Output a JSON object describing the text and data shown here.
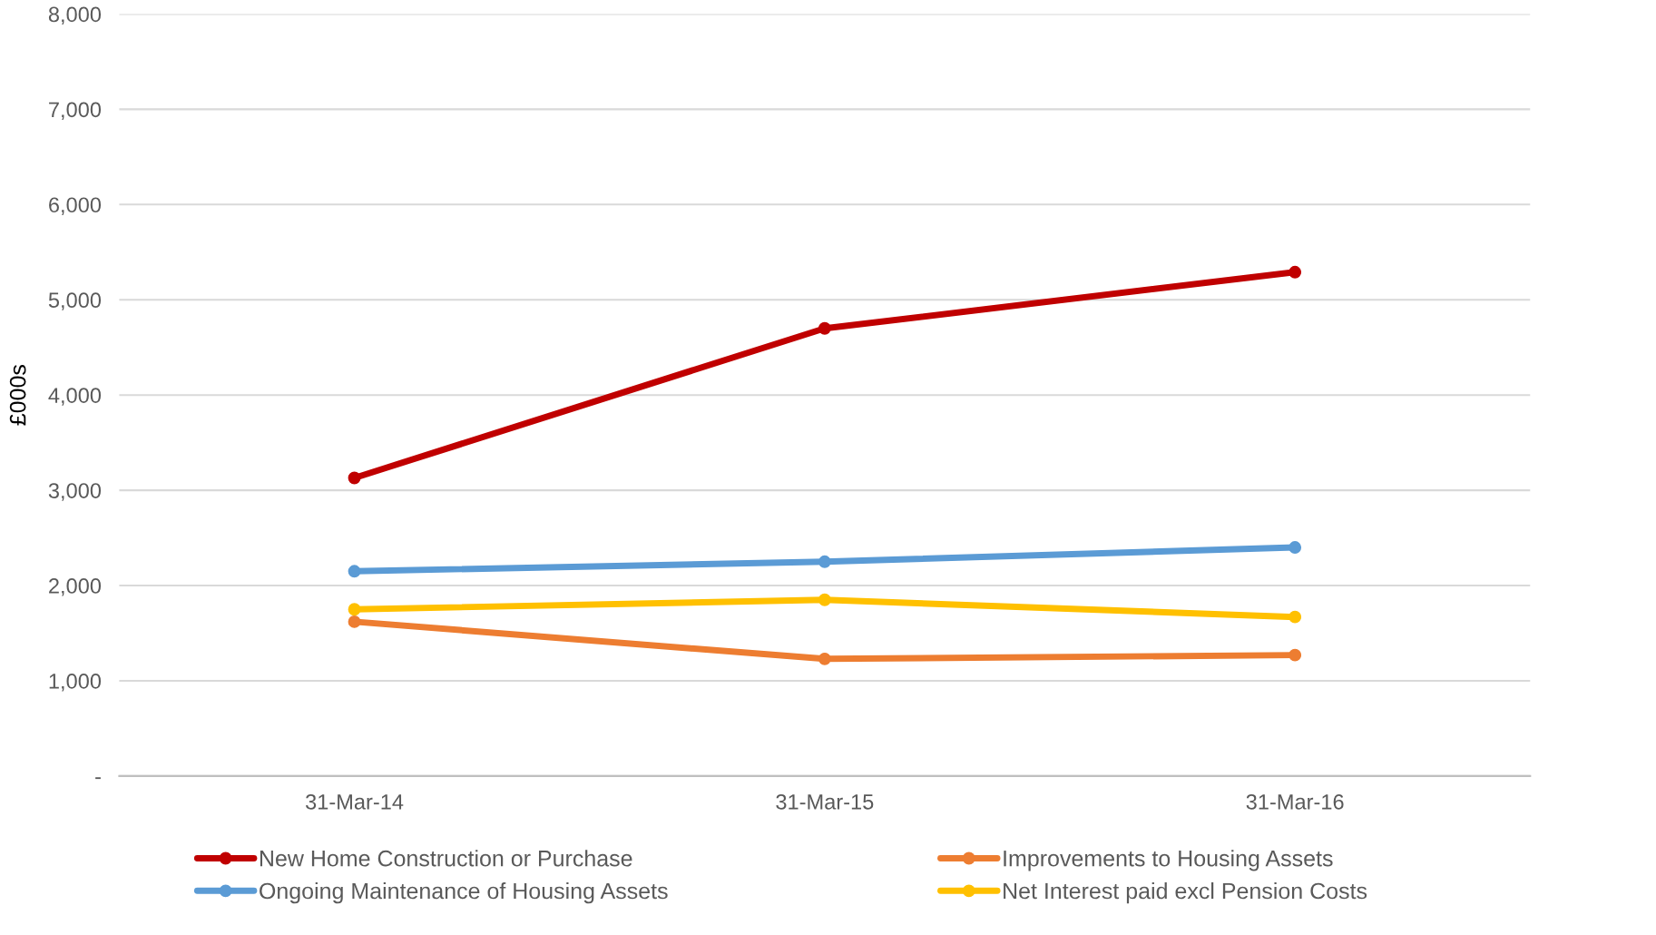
{
  "chart_data": {
    "type": "line",
    "ylabel": "£000s",
    "categories": [
      "31-Mar-14",
      "31-Mar-15",
      "31-Mar-16"
    ],
    "series": [
      {
        "name": "New Home Construction or Purchase",
        "color": "#c00000",
        "values": [
          3130,
          4700,
          5290
        ]
      },
      {
        "name": "Ongoing Maintenance of Housing Assets",
        "color": "#5b9bd5",
        "values": [
          2150,
          2250,
          2400
        ]
      },
      {
        "name": "Improvements to Housing Assets",
        "color": "#ed7d31",
        "values": [
          1620,
          1230,
          1270
        ]
      },
      {
        "name": "Net Interest paid excl Pension Costs",
        "color": "#ffc000",
        "values": [
          1750,
          1850,
          1670
        ]
      }
    ],
    "ylim": [
      0,
      8000
    ],
    "yticks": [
      {
        "value": 0,
        "label": "-"
      },
      {
        "value": 1000,
        "label": "1,000"
      },
      {
        "value": 2000,
        "label": "2,000"
      },
      {
        "value": 3000,
        "label": "3,000"
      },
      {
        "value": 4000,
        "label": "4,000"
      },
      {
        "value": 5000,
        "label": "5,000"
      },
      {
        "value": 6000,
        "label": "6,000"
      },
      {
        "value": 7000,
        "label": "7,000"
      },
      {
        "value": 8000,
        "label": "8,000"
      }
    ],
    "grid": "y",
    "legend": "bottom",
    "marker": "circle",
    "line_style": "solid"
  }
}
